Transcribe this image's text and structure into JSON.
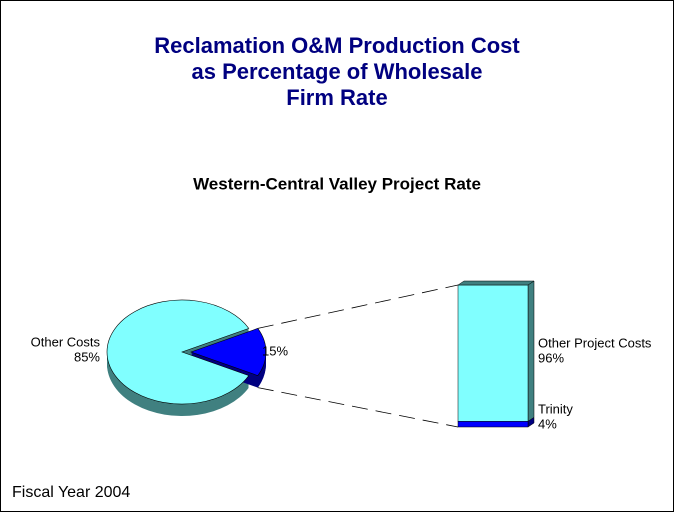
{
  "chart_data": {
    "type": "pie",
    "title": [
      "Reclamation O&M Production Cost",
      "as Percentage of Wholesale",
      "Firm Rate"
    ],
    "subtitle": "Western-Central Valley Project Rate",
    "categories": [
      "Other Costs",
      null
    ],
    "values": [
      85,
      15
    ],
    "value_labels": [
      "85%",
      "15%"
    ],
    "colors": [
      "#80ffff",
      "#0000ff"
    ],
    "breakdown": {
      "type": "bar",
      "categories": [
        "Other Project Costs",
        "Trinity"
      ],
      "values": [
        96,
        4
      ],
      "value_labels": [
        "96%",
        "4%"
      ],
      "colors": [
        "#80ffff",
        "#0000ff"
      ]
    }
  },
  "note": "Fiscal Year 2004"
}
